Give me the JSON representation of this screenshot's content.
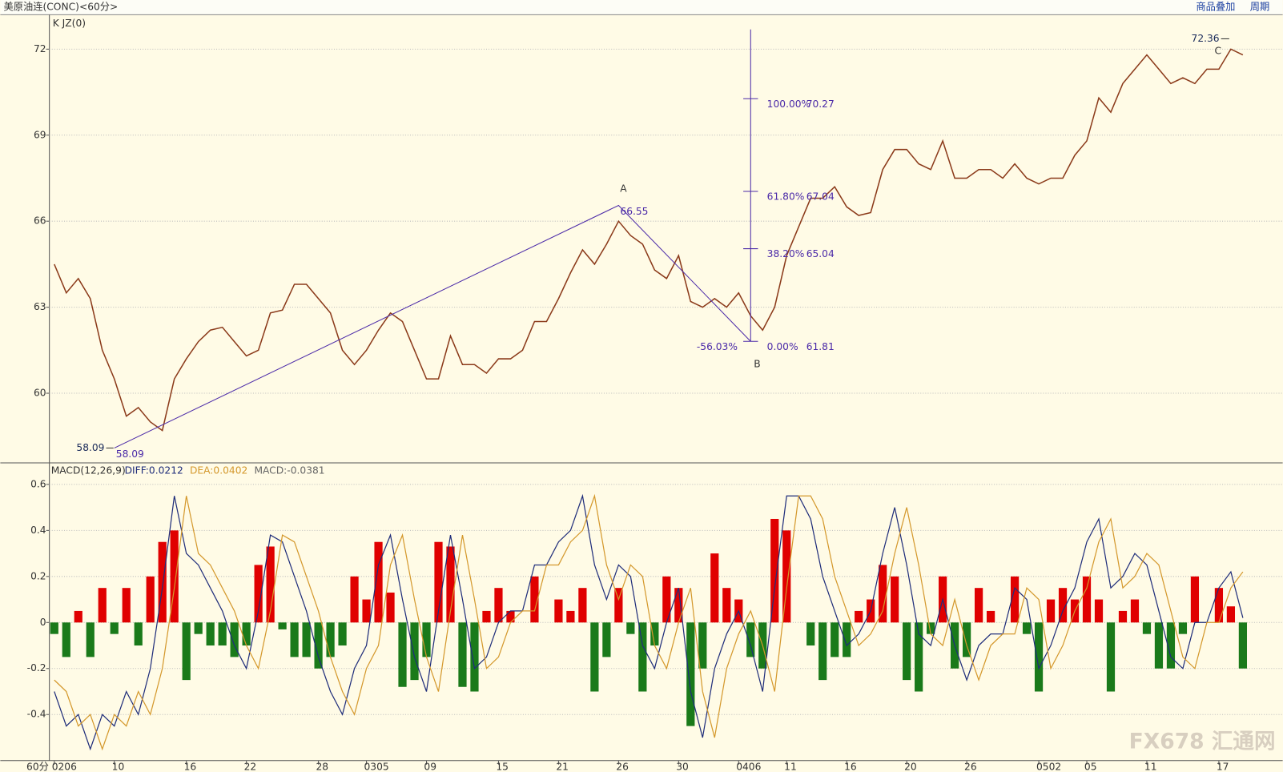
{
  "header": {
    "title": "美原油连(CONC)<60分>",
    "buttons": [
      "商品叠加",
      "周期"
    ],
    "period": "60分",
    "watermark": "FX678 汇通网"
  },
  "chart_data": [
    {
      "type": "line",
      "indicator_label": "K JZ(0)",
      "color": "#8b3a1a",
      "categories": [
        "0206",
        null,
        null,
        null,
        null,
        "10",
        null,
        null,
        null,
        null,
        null,
        "16",
        null,
        null,
        null,
        null,
        "22",
        null,
        null,
        null,
        null,
        null,
        "28",
        null,
        null,
        null,
        "0305",
        null,
        null,
        null,
        null,
        "09",
        null,
        null,
        null,
        null,
        null,
        "15",
        null,
        null,
        null,
        null,
        "21",
        null,
        null,
        null,
        null,
        "26",
        null,
        null,
        null,
        null,
        "30",
        null,
        null,
        null,
        null,
        "0406",
        null,
        null,
        null,
        "11",
        null,
        null,
        null,
        null,
        "16",
        null,
        null,
        null,
        null,
        "20",
        null,
        null,
        null,
        null,
        "26",
        null,
        null,
        null,
        null,
        null,
        "0502",
        null,
        null,
        null,
        "05",
        null,
        null,
        null,
        null,
        "11",
        null,
        null,
        null,
        null,
        null,
        "17",
        null,
        null
      ],
      "values": [
        64.5,
        63.5,
        64.0,
        63.3,
        61.5,
        60.5,
        59.2,
        59.5,
        59.0,
        58.7,
        60.5,
        61.2,
        61.8,
        62.2,
        62.3,
        61.8,
        61.3,
        61.5,
        62.8,
        62.9,
        63.8,
        63.8,
        63.3,
        62.8,
        61.5,
        61.0,
        61.5,
        62.2,
        62.8,
        62.5,
        61.5,
        60.5,
        60.5,
        62.0,
        61.0,
        61.0,
        60.7,
        61.2,
        61.2,
        61.5,
        62.5,
        62.5,
        63.3,
        64.2,
        65.0,
        64.5,
        65.2,
        66.0,
        65.5,
        65.2,
        64.3,
        64.0,
        64.8,
        63.2,
        63.0,
        63.3,
        63.0,
        63.5,
        62.7,
        62.2,
        63.0,
        64.8,
        65.8,
        66.8,
        66.8,
        67.2,
        66.5,
        66.2,
        66.3,
        67.8,
        68.5,
        68.5,
        68.0,
        67.8,
        68.8,
        67.5,
        67.5,
        67.8,
        67.8,
        67.5,
        68.0,
        67.5,
        67.3,
        67.5,
        67.5,
        68.3,
        68.8,
        70.3,
        69.8,
        70.8,
        71.3,
        71.8,
        71.3,
        70.8,
        71.0,
        70.8,
        71.3,
        71.3,
        72.0,
        71.8
      ],
      "ylim": [
        57.6,
        73.2
      ],
      "yticks": [
        60,
        63,
        66,
        69,
        72
      ],
      "grid": true,
      "wave_color": "#4b2aa8",
      "wave_points": [
        {
          "index": 5,
          "value": 58.09
        },
        {
          "label": "A",
          "index": 47,
          "value": 66.55
        },
        {
          "label": "B",
          "index": 58,
          "value": 61.81
        }
      ],
      "fib_levels": [
        {
          "pct": "100.00%",
          "value": 70.27
        },
        {
          "pct": "61.80%",
          "value": 67.04
        },
        {
          "pct": "38.20%",
          "value": 65.04
        },
        {
          "pct": "0.00%",
          "value": 61.81
        }
      ],
      "retrace_label": "-56.03%",
      "high_point": {
        "label": "C",
        "index": 98,
        "value": 72.36
      }
    },
    {
      "type": "macd",
      "title": "MACD(12,26,9)",
      "series": [
        {
          "name": "DIFF:0.0212",
          "color": "#1f2d7a",
          "values": [
            -0.3,
            -0.45,
            -0.4,
            -0.55,
            -0.4,
            -0.45,
            -0.3,
            -0.4,
            -0.2,
            0.15,
            0.55,
            0.3,
            0.25,
            0.15,
            0.05,
            -0.1,
            -0.2,
            0.05,
            0.38,
            0.35,
            0.2,
            0.05,
            -0.15,
            -0.3,
            -0.4,
            -0.2,
            -0.1,
            0.25,
            0.38,
            0.1,
            -0.15,
            -0.3,
            0.05,
            0.38,
            0.1,
            -0.2,
            -0.15,
            0.0,
            0.05,
            0.05,
            0.25,
            0.25,
            0.35,
            0.4,
            0.55,
            0.25,
            0.1,
            0.25,
            0.2,
            -0.1,
            -0.2,
            0.0,
            0.15,
            -0.3,
            -0.5,
            -0.2,
            -0.05,
            0.05,
            -0.1,
            -0.3,
            0.15,
            0.55,
            0.55,
            0.45,
            0.2,
            0.05,
            -0.1,
            -0.05,
            0.05,
            0.3,
            0.5,
            0.25,
            -0.05,
            -0.1,
            0.1,
            -0.1,
            -0.25,
            -0.1,
            -0.05,
            -0.05,
            0.15,
            0.1,
            -0.2,
            -0.1,
            0.05,
            0.15,
            0.35,
            0.45,
            0.15,
            0.2,
            0.3,
            0.25,
            0.05,
            -0.15,
            -0.2,
            0.0,
            0.0,
            0.15,
            0.22,
            0.02
          ]
        },
        {
          "name": "DEA:0.0402",
          "color": "#d4982c",
          "values": [
            -0.25,
            -0.3,
            -0.45,
            -0.4,
            -0.55,
            -0.4,
            -0.45,
            -0.3,
            -0.4,
            -0.2,
            0.15,
            0.55,
            0.3,
            0.25,
            0.15,
            0.05,
            -0.1,
            -0.2,
            0.05,
            0.38,
            0.35,
            0.2,
            0.05,
            -0.15,
            -0.3,
            -0.4,
            -0.2,
            -0.1,
            0.25,
            0.38,
            0.1,
            -0.15,
            -0.3,
            0.05,
            0.38,
            0.1,
            -0.2,
            -0.15,
            0.0,
            0.05,
            0.05,
            0.25,
            0.25,
            0.35,
            0.4,
            0.55,
            0.25,
            0.1,
            0.25,
            0.2,
            -0.1,
            -0.2,
            0.0,
            0.15,
            -0.3,
            -0.5,
            -0.2,
            -0.05,
            0.05,
            -0.1,
            -0.3,
            0.15,
            0.55,
            0.55,
            0.45,
            0.2,
            0.05,
            -0.1,
            -0.05,
            0.05,
            0.3,
            0.5,
            0.25,
            -0.05,
            -0.1,
            0.1,
            -0.1,
            -0.25,
            -0.1,
            -0.05,
            -0.05,
            0.15,
            0.1,
            -0.2,
            -0.1,
            0.05,
            0.15,
            0.35,
            0.45,
            0.15,
            0.2,
            0.3,
            0.25,
            0.05,
            -0.15,
            -0.2,
            0.0,
            0.0,
            0.15,
            0.22
          ]
        },
        {
          "name": "MACD:-0.0381",
          "color": "#666666",
          "pos_color": "#e00000",
          "neg_color": "#1a7a1a",
          "values": [
            -0.05,
            -0.15,
            0.05,
            -0.15,
            0.15,
            -0.05,
            0.15,
            -0.1,
            0.2,
            0.35,
            0.4,
            -0.25,
            -0.05,
            -0.1,
            -0.1,
            -0.15,
            -0.1,
            0.25,
            0.33,
            -0.03,
            -0.15,
            -0.15,
            -0.2,
            -0.15,
            -0.1,
            0.2,
            0.1,
            0.35,
            0.13,
            -0.28,
            -0.25,
            -0.15,
            0.35,
            0.33,
            -0.28,
            -0.3,
            0.05,
            0.15,
            0.05,
            0.0,
            0.2,
            0.0,
            0.1,
            0.05,
            0.15,
            -0.3,
            -0.15,
            0.15,
            -0.05,
            -0.3,
            -0.1,
            0.2,
            0.15,
            -0.45,
            -0.2,
            0.3,
            0.15,
            0.1,
            -0.15,
            -0.2,
            0.45,
            0.4,
            0.0,
            -0.1,
            -0.25,
            -0.15,
            -0.15,
            0.05,
            0.1,
            0.25,
            0.2,
            -0.25,
            -0.3,
            -0.05,
            0.2,
            -0.2,
            -0.15,
            0.15,
            0.05,
            0.0,
            0.2,
            -0.05,
            -0.3,
            0.1,
            0.15,
            0.1,
            0.2,
            0.1,
            -0.3,
            0.05,
            0.1,
            -0.05,
            -0.2,
            -0.2,
            -0.05,
            0.2,
            0.0,
            0.15,
            0.07,
            -0.2
          ]
        }
      ],
      "ylim": [
        -0.6,
        0.69
      ],
      "yticks": [
        0.6,
        0.4,
        0.2,
        0,
        -0.2,
        -0.4
      ],
      "grid": true
    }
  ]
}
